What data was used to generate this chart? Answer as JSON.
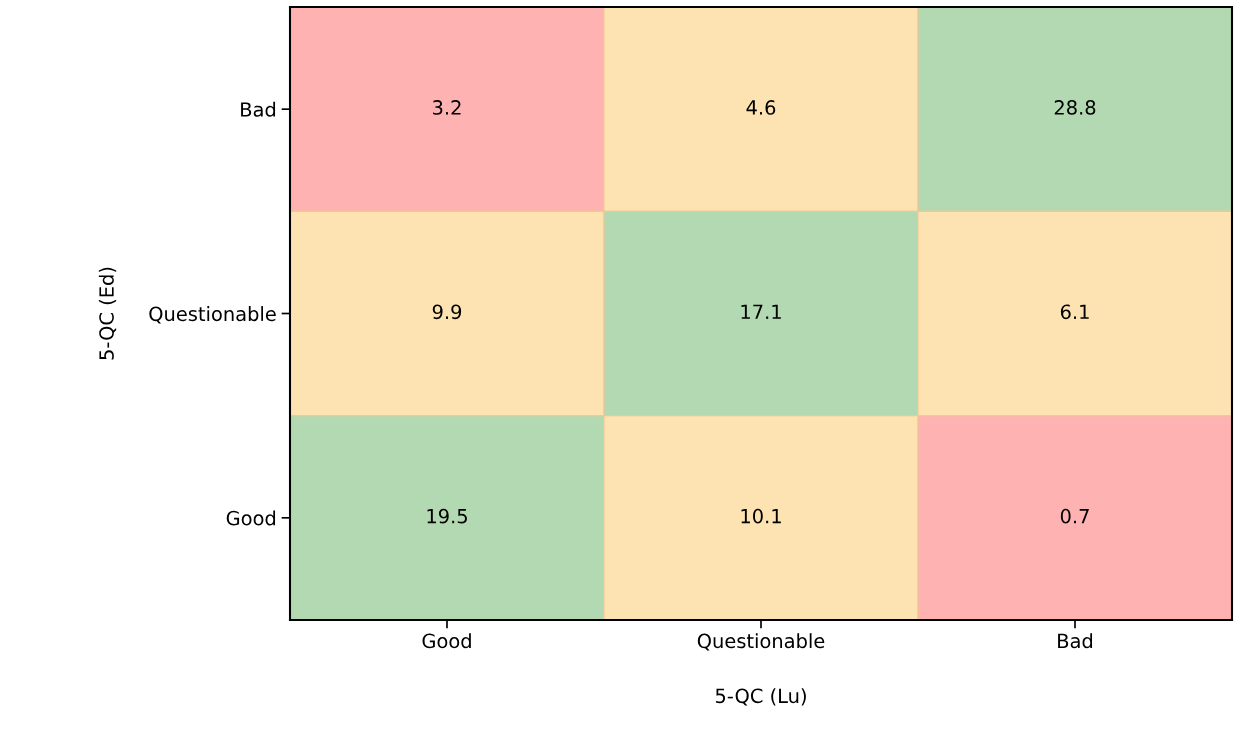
{
  "chart_data": {
    "type": "heatmap",
    "xlabel": "5-QC (Lu)",
    "ylabel": "5-QC (Ed)",
    "categories": [
      "Good",
      "Questionable",
      "Bad"
    ],
    "y_categories": [
      "Bad",
      "Questionable",
      "Good"
    ],
    "cells": [
      [
        3.2,
        4.6,
        28.8
      ],
      [
        9.9,
        17.1,
        6.1
      ],
      [
        19.5,
        10.1,
        0.7
      ]
    ],
    "colors": [
      [
        "#ffb2b2",
        "#fde2b2",
        "#b3d9b3"
      ],
      [
        "#fde2b2",
        "#b3d9b3",
        "#fde2b2"
      ],
      [
        "#b3d9b3",
        "#fde2b2",
        "#ffb2b2"
      ]
    ],
    "data_labels": true,
    "grid": false
  }
}
